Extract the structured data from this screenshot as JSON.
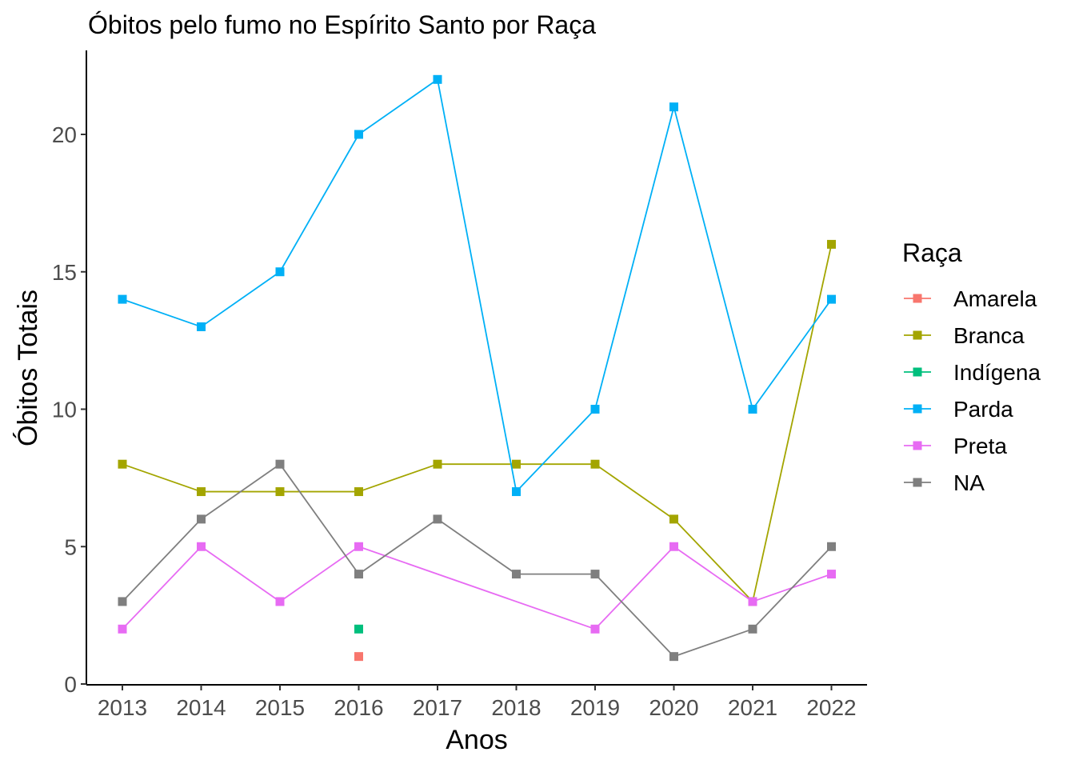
{
  "chart_data": {
    "type": "line",
    "title": "Óbitos pelo fumo no Espírito Santo por Raça",
    "xlabel": "Anos",
    "ylabel": "Óbitos Totais",
    "x": [
      2013,
      2014,
      2015,
      2016,
      2017,
      2018,
      2019,
      2020,
      2021,
      2022
    ],
    "x_tick_labels": [
      "2013",
      "2014",
      "2015",
      "2016",
      "2017",
      "2018",
      "2019",
      "2020",
      "2021",
      "2022"
    ],
    "ylim": [
      0,
      23
    ],
    "y_ticks": [
      0,
      5,
      10,
      15,
      20
    ],
    "y_tick_labels": [
      "0",
      "5",
      "10",
      "15",
      "20"
    ],
    "legend_title": "Raça",
    "legend_position": "right",
    "grid": false,
    "series": [
      {
        "name": "Amarela",
        "color": "#F8766D",
        "values": [
          null,
          null,
          null,
          1,
          null,
          null,
          null,
          null,
          null,
          null
        ]
      },
      {
        "name": "Branca",
        "color": "#A3A500",
        "values": [
          8,
          7,
          7,
          7,
          8,
          8,
          8,
          6,
          3,
          16
        ]
      },
      {
        "name": "Indígena",
        "color": "#00BF7D",
        "values": [
          null,
          null,
          null,
          2,
          null,
          null,
          null,
          null,
          null,
          null
        ]
      },
      {
        "name": "Parda",
        "color": "#00B0F6",
        "values": [
          14,
          13,
          15,
          20,
          22,
          7,
          10,
          21,
          10,
          14
        ]
      },
      {
        "name": "Preta",
        "color": "#E76BF3",
        "values": [
          2,
          5,
          3,
          5,
          null,
          null,
          2,
          5,
          3,
          4
        ]
      },
      {
        "name": "NA",
        "color": "#7F7F7F",
        "values": [
          3,
          6,
          8,
          4,
          6,
          4,
          4,
          1,
          2,
          5
        ]
      }
    ]
  }
}
